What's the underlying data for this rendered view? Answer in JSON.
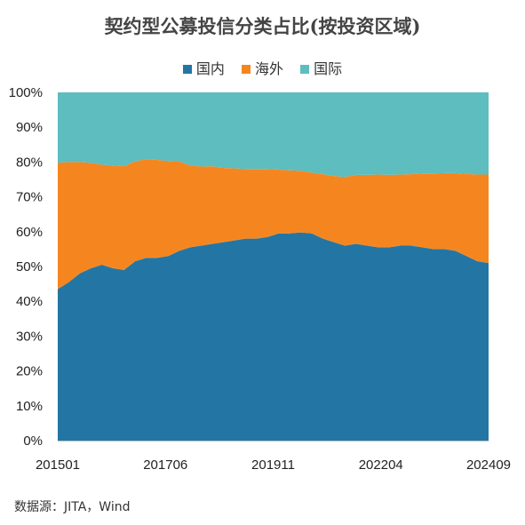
{
  "title": "契约型公募投信分类占比(按投资区域)",
  "source": "数据源：JITA，Wind",
  "colors": {
    "domestic": "#2376a4",
    "overseas": "#f5861f",
    "international": "#5dbdbf"
  },
  "chart_data": {
    "type": "area",
    "stacked": true,
    "normalized": true,
    "title": "契约型公募投信分类占比(按投资区域)",
    "xlabel": "",
    "ylabel": "",
    "ylim": [
      0,
      100
    ],
    "y_ticks": [
      "0%",
      "10%",
      "20%",
      "30%",
      "40%",
      "50%",
      "60%",
      "70%",
      "80%",
      "90%",
      "100%"
    ],
    "x_tick_labels": [
      "201501",
      "201706",
      "201911",
      "202204",
      "202409"
    ],
    "legend_position": "top",
    "grid": false,
    "x": [
      "201501",
      "201504",
      "201507",
      "201510",
      "201601",
      "201604",
      "201607",
      "201610",
      "201701",
      "201704",
      "201707",
      "201710",
      "201801",
      "201804",
      "201807",
      "201810",
      "201901",
      "201904",
      "201907",
      "201910",
      "202001",
      "202004",
      "202007",
      "202010",
      "202101",
      "202104",
      "202107",
      "202110",
      "202201",
      "202204",
      "202207",
      "202210",
      "202301",
      "202304",
      "202307",
      "202310",
      "202401",
      "202404",
      "202407",
      "202409"
    ],
    "series": [
      {
        "name": "国内",
        "color": "#2376a4",
        "values": [
          43.5,
          45.5,
          48,
          49.5,
          50.5,
          49.5,
          49,
          51.5,
          52.5,
          52.5,
          53,
          54.5,
          55.5,
          56,
          56.5,
          57,
          57.5,
          58,
          58,
          58.5,
          59.5,
          59.5,
          59.8,
          59.5,
          58,
          57,
          56,
          56.5,
          56,
          55.5,
          55.5,
          56,
          56,
          55.5,
          55,
          55,
          54.5,
          53,
          51.5,
          51
        ]
      },
      {
        "name": "海外",
        "color": "#f5861f",
        "values": [
          36.3,
          34.5,
          32,
          30.3,
          28.7,
          29.5,
          29.8,
          28.7,
          28.3,
          28.1,
          27.3,
          25.7,
          23.5,
          22.7,
          22.3,
          21.3,
          20.7,
          20,
          20,
          19.5,
          18.3,
          18.1,
          17.7,
          17.5,
          18.5,
          19,
          19.7,
          19.8,
          20.3,
          20.9,
          20.8,
          20.4,
          20.5,
          21.2,
          21.7,
          21.8,
          22.3,
          23.6,
          24.9,
          25.4
        ]
      },
      {
        "name": "国际",
        "color": "#5dbdbf",
        "values": [
          20.2,
          20,
          20,
          20.2,
          20.8,
          21,
          21.2,
          19.8,
          19.2,
          19.4,
          19.7,
          19.8,
          21,
          21.3,
          21.2,
          21.7,
          21.8,
          22,
          22,
          22,
          22.2,
          22.4,
          22.5,
          23,
          23.5,
          24,
          24.3,
          23.7,
          23.7,
          23.6,
          23.7,
          23.6,
          23.5,
          23.3,
          23.3,
          23.2,
          23.2,
          23.4,
          23.6,
          23.6
        ]
      }
    ]
  }
}
